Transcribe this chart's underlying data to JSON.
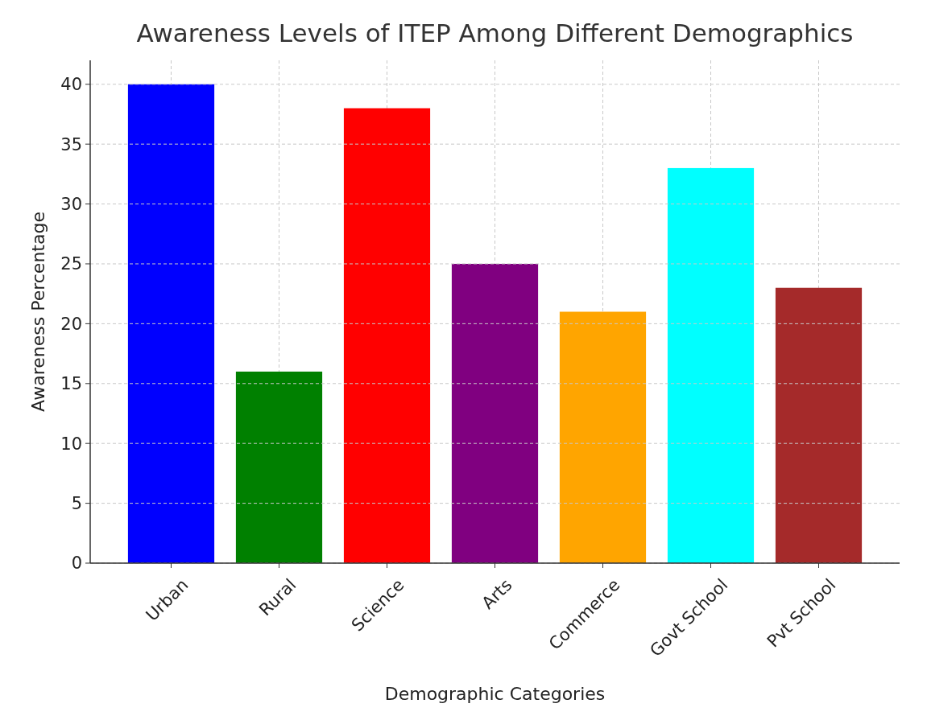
{
  "chart_data": {
    "type": "bar",
    "title": "Awareness Levels of ITEP Among Different Demographics",
    "xlabel": "Demographic Categories",
    "ylabel": "Awareness Percentage",
    "categories": [
      "Urban",
      "Rural",
      "Science",
      "Arts",
      "Commerce",
      "Govt School",
      "Pvt School"
    ],
    "values": [
      40,
      16,
      38,
      25,
      21,
      33,
      23
    ],
    "colors": [
      "#0000ff",
      "#008000",
      "#ff0000",
      "#800080",
      "#ffa500",
      "#00ffff",
      "#a52a2a"
    ],
    "ylim": [
      0,
      42
    ],
    "yticks": [
      0,
      5,
      10,
      15,
      20,
      25,
      30,
      35,
      40
    ],
    "grid": true
  }
}
